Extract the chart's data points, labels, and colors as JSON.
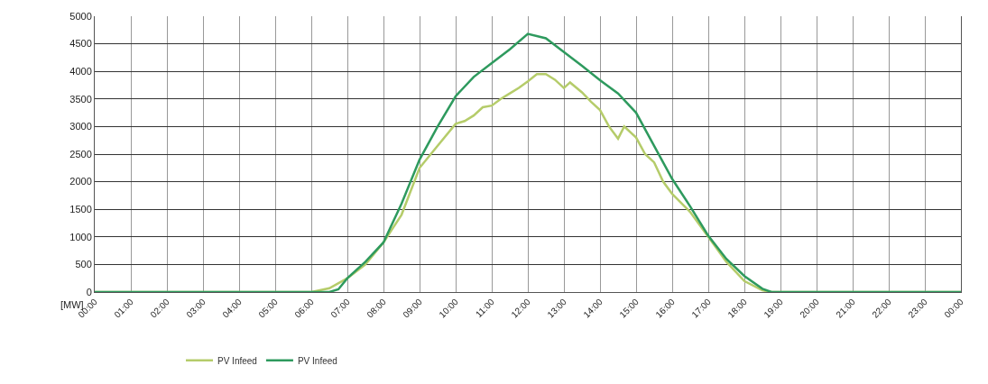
{
  "chart_data": {
    "type": "line",
    "ylabel": "[MW]",
    "xlim": [
      0,
      24
    ],
    "xticks": [
      {
        "value": 0,
        "label": "00:00"
      },
      {
        "value": 1,
        "label": "01:00"
      },
      {
        "value": 2,
        "label": "02:00"
      },
      {
        "value": 3,
        "label": "03:00"
      },
      {
        "value": 4,
        "label": "04:00"
      },
      {
        "value": 5,
        "label": "05:00"
      },
      {
        "value": 6,
        "label": "06:00"
      },
      {
        "value": 7,
        "label": "07:00"
      },
      {
        "value": 8,
        "label": "08:00"
      },
      {
        "value": 9,
        "label": "09:00"
      },
      {
        "value": 10,
        "label": "10:00"
      },
      {
        "value": 11,
        "label": "11:00"
      },
      {
        "value": 12,
        "label": "12:00"
      },
      {
        "value": 13,
        "label": "13:00"
      },
      {
        "value": 14,
        "label": "14:00"
      },
      {
        "value": 15,
        "label": "15:00"
      },
      {
        "value": 16,
        "label": "16:00"
      },
      {
        "value": 17,
        "label": "17:00"
      },
      {
        "value": 18,
        "label": "18:00"
      },
      {
        "value": 19,
        "label": "19:00"
      },
      {
        "value": 20,
        "label": "20:00"
      },
      {
        "value": 21,
        "label": "21:00"
      },
      {
        "value": 22,
        "label": "22:00"
      },
      {
        "value": 23,
        "label": "23:00"
      },
      {
        "value": 24,
        "label": "00:00"
      }
    ],
    "ylim": [
      0,
      5000
    ],
    "yticks": [
      0,
      500,
      1000,
      1500,
      2000,
      2500,
      3000,
      3500,
      4000,
      4500,
      5000
    ],
    "grid": true,
    "legend": "bottom left",
    "marker": "none",
    "line_style": "solid",
    "series": [
      {
        "name": "PV Infeed",
        "color": "#b5cc6a",
        "x": [
          0,
          6,
          6.5,
          7,
          7.5,
          8,
          8.5,
          9,
          9.5,
          10,
          10.25,
          10.5,
          10.75,
          11,
          11.25,
          11.5,
          11.75,
          12,
          12.25,
          12.5,
          12.75,
          13,
          13.17,
          13.5,
          13.75,
          14,
          14.25,
          14.5,
          14.67,
          15,
          15.25,
          15.5,
          15.75,
          16,
          16.5,
          17,
          17.5,
          18,
          18.5,
          18.75,
          24
        ],
        "values": [
          0,
          0,
          70,
          250,
          500,
          900,
          1400,
          2250,
          2650,
          3050,
          3100,
          3200,
          3350,
          3380,
          3500,
          3600,
          3700,
          3820,
          3950,
          3950,
          3850,
          3700,
          3800,
          3620,
          3450,
          3300,
          3000,
          2780,
          3000,
          2800,
          2500,
          2350,
          2000,
          1780,
          1450,
          1000,
          550,
          200,
          30,
          0,
          0
        ]
      },
      {
        "name": "PV Infeed",
        "color": "#2e9a5e",
        "x": [
          0,
          6.5,
          6.75,
          7,
          7.5,
          8,
          8.5,
          9,
          9.5,
          10,
          10.5,
          11,
          11.5,
          12,
          12.5,
          13,
          13.5,
          14,
          14.5,
          15,
          15.5,
          16,
          16.5,
          17,
          17.5,
          18,
          18.5,
          18.75,
          24
        ],
        "values": [
          0,
          0,
          50,
          250,
          550,
          900,
          1600,
          2400,
          3000,
          3550,
          3900,
          4150,
          4400,
          4680,
          4600,
          4350,
          4100,
          3840,
          3600,
          3250,
          2650,
          2050,
          1550,
          1020,
          600,
          290,
          60,
          0,
          0
        ]
      }
    ]
  }
}
